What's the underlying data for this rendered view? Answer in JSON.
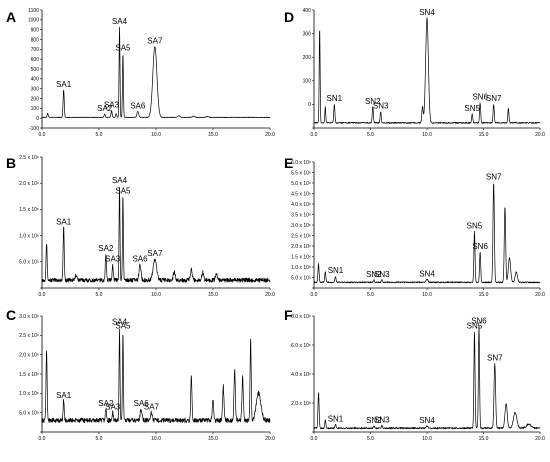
{
  "chart_data": [
    {
      "type": "line",
      "panel": "A",
      "xlim": [
        0,
        20
      ],
      "ylim": [
        -100,
        1100
      ],
      "xticks": [
        "0.0",
        "5.0",
        "10.0",
        "15.0",
        "20.0"
      ],
      "yticks": [
        "-100",
        "0",
        "100",
        "200",
        "300",
        "400",
        "500",
        "600",
        "700",
        "800",
        "900",
        "1000",
        "1100"
      ],
      "baseline": 8,
      "noise": 3,
      "peaks": [
        {
          "x": 1.9,
          "y": 280,
          "w": 0.05,
          "label": "SA1"
        },
        {
          "x": 5.5,
          "y": 35,
          "w": 0.05,
          "label": "SA2"
        },
        {
          "x": 6.1,
          "y": 70,
          "w": 0.05,
          "label": "SA3"
        },
        {
          "x": 6.8,
          "y": 920,
          "w": 0.04,
          "label": "SA4"
        },
        {
          "x": 7.1,
          "y": 650,
          "w": 0.04,
          "label": "SA5"
        },
        {
          "x": 8.4,
          "y": 60,
          "w": 0.08,
          "label": "SA6"
        },
        {
          "x": 9.9,
          "y": 720,
          "w": 0.18,
          "label": "SA7"
        },
        {
          "x": 0.5,
          "y": 40,
          "w": 0.05
        },
        {
          "x": 6.5,
          "y": 40,
          "w": 0.05
        },
        {
          "x": 12.0,
          "y": 15,
          "w": 0.1
        },
        {
          "x": 13.3,
          "y": 12,
          "w": 0.1
        },
        {
          "x": 14.5,
          "y": 10,
          "w": 0.1
        }
      ]
    },
    {
      "type": "line",
      "panel": "B",
      "xlim": [
        0,
        20
      ],
      "ylim": [
        0,
        2500000
      ],
      "xticks": [
        "0.0",
        "5.0",
        "10.0",
        "15.0",
        "20.0"
      ],
      "yticks": [
        "",
        "5.0 x 10⁵",
        "1.0 x 10⁶",
        "1.5 x 10⁶",
        "2.0 x 10⁶",
        "2.5 x 10⁶"
      ],
      "baseline": 150000,
      "noise": 40000,
      "peaks": [
        {
          "x": 1.9,
          "y": 1000000,
          "w": 0.05,
          "label": "SA1"
        },
        {
          "x": 5.6,
          "y": 500000,
          "w": 0.05,
          "label": "SA2"
        },
        {
          "x": 6.2,
          "y": 300000,
          "w": 0.05,
          "label": "SA3"
        },
        {
          "x": 6.8,
          "y": 1800000,
          "w": 0.04,
          "label": "SA4"
        },
        {
          "x": 7.1,
          "y": 1600000,
          "w": 0.04,
          "label": "SA5"
        },
        {
          "x": 8.6,
          "y": 300000,
          "w": 0.08,
          "label": "SA6"
        },
        {
          "x": 9.9,
          "y": 400000,
          "w": 0.15,
          "label": "SA7"
        },
        {
          "x": 0.4,
          "y": 700000,
          "w": 0.05
        },
        {
          "x": 3.0,
          "y": 100000,
          "w": 0.08
        },
        {
          "x": 11.6,
          "y": 150000,
          "w": 0.08
        },
        {
          "x": 13.1,
          "y": 200000,
          "w": 0.08
        },
        {
          "x": 14.1,
          "y": 150000,
          "w": 0.08
        },
        {
          "x": 15.3,
          "y": 120000,
          "w": 0.08
        }
      ]
    },
    {
      "type": "line",
      "panel": "C",
      "xlim": [
        0,
        20
      ],
      "ylim": [
        0,
        3000000
      ],
      "xticks": [
        "0.0",
        "5.0",
        "10.0",
        "15.0",
        "20.0"
      ],
      "yticks": [
        "",
        "5.0 x 10⁵",
        "1.0 x 10⁶",
        "1.5 x 10⁶",
        "2.0 x 10⁶",
        "2.5 x 10⁶",
        "3.0 x 10⁶"
      ],
      "baseline": 300000,
      "noise": 60000,
      "peaks": [
        {
          "x": 0.4,
          "y": 1800000,
          "w": 0.05
        },
        {
          "x": 1.9,
          "y": 500000,
          "w": 0.05,
          "label": "SA1"
        },
        {
          "x": 5.6,
          "y": 300000,
          "w": 0.05,
          "label": "SA2"
        },
        {
          "x": 6.2,
          "y": 200000,
          "w": 0.05,
          "label": "SA3"
        },
        {
          "x": 6.8,
          "y": 2400000,
          "w": 0.04,
          "label": "SA4"
        },
        {
          "x": 7.1,
          "y": 2300000,
          "w": 0.04,
          "label": "SA5"
        },
        {
          "x": 8.7,
          "y": 300000,
          "w": 0.08,
          "label": "SA6"
        },
        {
          "x": 9.6,
          "y": 200000,
          "w": 0.08,
          "label": "SA7"
        },
        {
          "x": 13.1,
          "y": 1200000,
          "w": 0.05
        },
        {
          "x": 15.0,
          "y": 500000,
          "w": 0.06
        },
        {
          "x": 15.9,
          "y": 900000,
          "w": 0.06
        },
        {
          "x": 16.9,
          "y": 1300000,
          "w": 0.06
        },
        {
          "x": 17.6,
          "y": 1100000,
          "w": 0.06
        },
        {
          "x": 18.3,
          "y": 2100000,
          "w": 0.05
        },
        {
          "x": 19.0,
          "y": 700000,
          "w": 0.2
        }
      ]
    },
    {
      "type": "line",
      "panel": "D",
      "xlim": [
        0,
        20
      ],
      "ylim": [
        -10,
        400
      ],
      "xticks": [
        "0.0",
        "5.0",
        "10.0",
        "15.0",
        "20.0"
      ],
      "yticks": [
        "",
        "0",
        "100",
        "200",
        "300",
        "400"
      ],
      "baseline": 8,
      "noise": 2,
      "peaks": [
        {
          "x": 0.5,
          "y": 330,
          "w": 0.04
        },
        {
          "x": 1.0,
          "y": 55,
          "w": 0.04
        },
        {
          "x": 1.8,
          "y": 65,
          "w": 0.05,
          "label": "SN1"
        },
        {
          "x": 5.2,
          "y": 55,
          "w": 0.05,
          "label": "SN2"
        },
        {
          "x": 5.9,
          "y": 40,
          "w": 0.05,
          "label": "SN3"
        },
        {
          "x": 9.6,
          "y": 55,
          "w": 0.06
        },
        {
          "x": 10.0,
          "y": 365,
          "w": 0.12,
          "label": "SN4"
        },
        {
          "x": 14.0,
          "y": 30,
          "w": 0.05,
          "label": "SN5"
        },
        {
          "x": 14.7,
          "y": 70,
          "w": 0.05,
          "label": "SN6"
        },
        {
          "x": 15.9,
          "y": 65,
          "w": 0.05,
          "label": "SN7"
        },
        {
          "x": 17.2,
          "y": 50,
          "w": 0.05
        }
      ]
    },
    {
      "type": "line",
      "panel": "E",
      "xlim": [
        0,
        20
      ],
      "ylim": [
        -200000,
        6000000
      ],
      "xticks": [
        "0.0",
        "5.0",
        "10.0",
        "15.0",
        "20.0"
      ],
      "yticks": [
        "",
        "5.0 x 10⁵",
        "1.0 x 10⁶",
        "1.5 x 10⁶",
        "2.0 x 10⁶",
        "2.5 x 10⁶",
        "3.0 x 10⁶",
        "3.5 x 10⁶",
        "4.0 x 10⁶",
        "4.5 x 10⁶",
        "5.0 x 10⁶",
        "5.5 x 10⁶",
        "6.0 x 10⁶"
      ],
      "baseline": 80000,
      "noise": 30000,
      "peaks": [
        {
          "x": 0.4,
          "y": 900000,
          "w": 0.05
        },
        {
          "x": 1.0,
          "y": 500000,
          "w": 0.05
        },
        {
          "x": 1.9,
          "y": 300000,
          "w": 0.05,
          "label": "SN1"
        },
        {
          "x": 5.3,
          "y": 120000,
          "w": 0.05,
          "label": "SN2"
        },
        {
          "x": 6.0,
          "y": 120000,
          "w": 0.05,
          "label": "SN3"
        },
        {
          "x": 10.0,
          "y": 150000,
          "w": 0.08,
          "label": "SN4"
        },
        {
          "x": 14.2,
          "y": 2500000,
          "w": 0.05,
          "label": "SN5"
        },
        {
          "x": 14.7,
          "y": 1500000,
          "w": 0.05,
          "label": "SN6"
        },
        {
          "x": 15.9,
          "y": 4900000,
          "w": 0.06,
          "label": "SN7"
        },
        {
          "x": 16.9,
          "y": 3700000,
          "w": 0.06
        },
        {
          "x": 17.3,
          "y": 1200000,
          "w": 0.1
        },
        {
          "x": 17.9,
          "y": 500000,
          "w": 0.1
        }
      ]
    },
    {
      "type": "line",
      "panel": "F",
      "xlim": [
        0,
        20
      ],
      "ylim": [
        0,
        9000000
      ],
      "xticks": [
        "0.0",
        "5.0",
        "10.0",
        "15.0",
        "20.0"
      ],
      "yticks": [
        "",
        "2.0 x 10⁶",
        "4.0 x 10⁶",
        "6.0 x 10⁶",
        "8.0 x 10⁶"
      ],
      "baseline": 300000,
      "noise": 60000,
      "peaks": [
        {
          "x": 0.4,
          "y": 2800000,
          "w": 0.05
        },
        {
          "x": 1.0,
          "y": 600000,
          "w": 0.05
        },
        {
          "x": 1.9,
          "y": 300000,
          "w": 0.05,
          "label": "SN1"
        },
        {
          "x": 5.3,
          "y": 150000,
          "w": 0.05,
          "label": "SN2"
        },
        {
          "x": 6.0,
          "y": 200000,
          "w": 0.05,
          "label": "SN3"
        },
        {
          "x": 10.0,
          "y": 150000,
          "w": 0.08,
          "label": "SN4"
        },
        {
          "x": 14.2,
          "y": 7500000,
          "w": 0.05,
          "label": "SN5"
        },
        {
          "x": 14.6,
          "y": 7900000,
          "w": 0.05,
          "label": "SN6"
        },
        {
          "x": 16.0,
          "y": 5000000,
          "w": 0.07,
          "label": "SN7"
        },
        {
          "x": 17.0,
          "y": 1900000,
          "w": 0.1
        },
        {
          "x": 17.8,
          "y": 1200000,
          "w": 0.15
        },
        {
          "x": 19.0,
          "y": 300000,
          "w": 0.2
        }
      ]
    }
  ]
}
